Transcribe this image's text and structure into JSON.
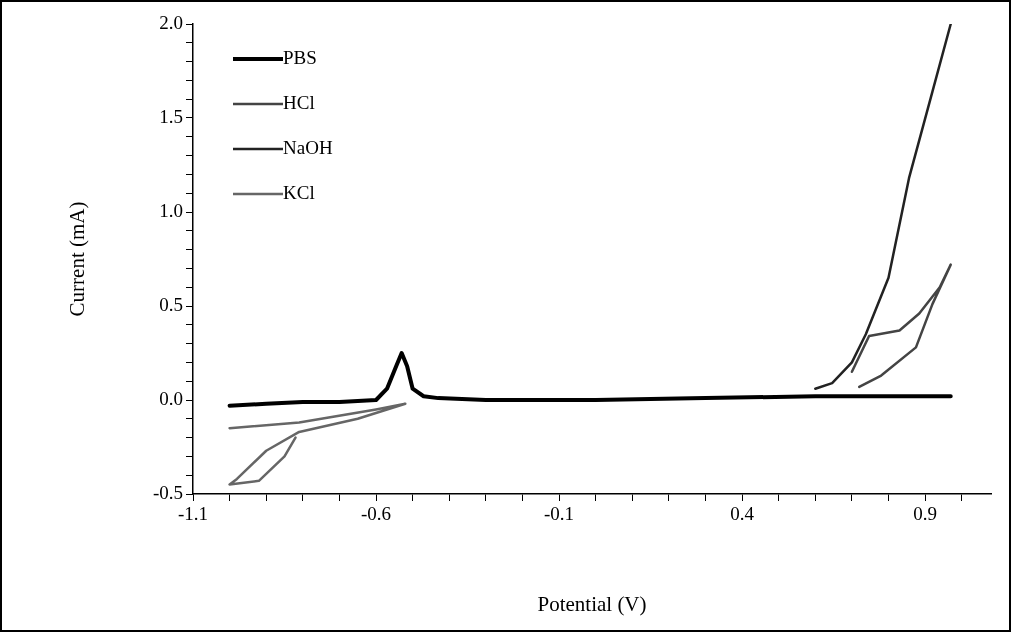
{
  "chart_data": {
    "type": "line",
    "xlabel": "Potential (V)",
    "ylabel": "Current (mA)",
    "xlim": [
      -1.1,
      1.08
    ],
    "ylim": [
      -0.5,
      2.0
    ],
    "xticks": [
      -1.1,
      {
        "value": -1.0,
        "label": null
      },
      {
        "value": -0.9,
        "label": null
      },
      {
        "value": -0.8,
        "label": null
      },
      {
        "value": -0.7,
        "label": null
      },
      -0.6,
      {
        "value": -0.5,
        "label": null
      },
      {
        "value": -0.4,
        "label": null
      },
      {
        "value": -0.3,
        "label": null
      },
      {
        "value": -0.2,
        "label": null
      },
      -0.1,
      {
        "value": 0.0,
        "label": null
      },
      {
        "value": 0.1,
        "label": null
      },
      {
        "value": 0.2,
        "label": null
      },
      {
        "value": 0.3,
        "label": null
      },
      0.4,
      {
        "value": 0.5,
        "label": null
      },
      {
        "value": 0.6,
        "label": null
      },
      {
        "value": 0.7,
        "label": null
      },
      {
        "value": 0.8,
        "label": null
      },
      0.9,
      {
        "value": 1.0,
        "label": null
      }
    ],
    "yticks": [
      {
        "value": -0.5,
        "label": "-0.5"
      },
      {
        "value": -0.4,
        "label": null
      },
      {
        "value": -0.3,
        "label": null
      },
      {
        "value": -0.2,
        "label": null
      },
      {
        "value": -0.1,
        "label": null
      },
      {
        "value": 0,
        "label": "0.0"
      },
      {
        "value": 0.1,
        "label": null
      },
      {
        "value": 0.2,
        "label": null
      },
      {
        "value": 0.3,
        "label": null
      },
      {
        "value": 0.4,
        "label": null
      },
      {
        "value": 0.5,
        "label": "0.5"
      },
      {
        "value": 0.6,
        "label": null
      },
      {
        "value": 0.7,
        "label": null
      },
      {
        "value": 0.8,
        "label": null
      },
      {
        "value": 0.9,
        "label": null
      },
      {
        "value": 1.0,
        "label": "1.0"
      },
      {
        "value": 1.1,
        "label": null
      },
      {
        "value": 1.2,
        "label": null
      },
      {
        "value": 1.3,
        "label": null
      },
      {
        "value": 1.4,
        "label": null
      },
      {
        "value": 1.5,
        "label": "1.5"
      },
      {
        "value": 1.6,
        "label": null
      },
      {
        "value": 1.7,
        "label": null
      },
      {
        "value": 1.8,
        "label": null
      },
      {
        "value": 1.9,
        "label": null
      },
      {
        "value": 2.0,
        "label": "2.0"
      }
    ],
    "grid": false,
    "legend": "top left",
    "marker": "none",
    "line_style": "solid",
    "series": [
      {
        "name": "PBS",
        "color": "#000000",
        "x": [
          -1.0,
          -0.9,
          -0.8,
          -0.7,
          -0.6,
          -0.57,
          -0.545,
          -0.53,
          -0.515,
          -0.5,
          -0.47,
          -0.43,
          -0.3,
          0.0,
          0.3,
          0.6,
          0.97
        ],
        "values": [
          -0.03,
          -0.02,
          -0.01,
          -0.01,
          0.0,
          0.06,
          0.18,
          0.25,
          0.18,
          0.06,
          0.02,
          0.01,
          0.0,
          0.0,
          0.01,
          0.02,
          0.02
        ]
      },
      {
        "name": "HCl",
        "color": "#444444",
        "x": [
          0.7,
          0.747,
          0.83,
          0.884,
          0.94,
          0.97,
          0.92,
          0.875,
          0.78,
          0.72
        ],
        "values": [
          0.15,
          0.34,
          0.37,
          0.46,
          0.6,
          0.72,
          0.51,
          0.28,
          0.13,
          0.07
        ]
      },
      {
        "name": "NaOH",
        "color": "#222222",
        "x": [
          0.6,
          0.646,
          0.7,
          0.738,
          0.8,
          0.856,
          0.92,
          0.97
        ],
        "values": [
          0.06,
          0.09,
          0.2,
          0.35,
          0.65,
          1.18,
          1.64,
          2.0
        ]
      },
      {
        "name": "KCl",
        "color": "#666666",
        "x": [
          -1.0,
          -0.81,
          -0.6,
          -0.52,
          -0.65,
          -0.81,
          -0.9,
          -0.98,
          -1.0,
          -0.92,
          -0.85,
          -0.82
        ],
        "values": [
          -0.15,
          -0.12,
          -0.05,
          -0.02,
          -0.1,
          -0.17,
          -0.27,
          -0.42,
          -0.45,
          -0.43,
          -0.3,
          -0.2
        ]
      }
    ]
  }
}
